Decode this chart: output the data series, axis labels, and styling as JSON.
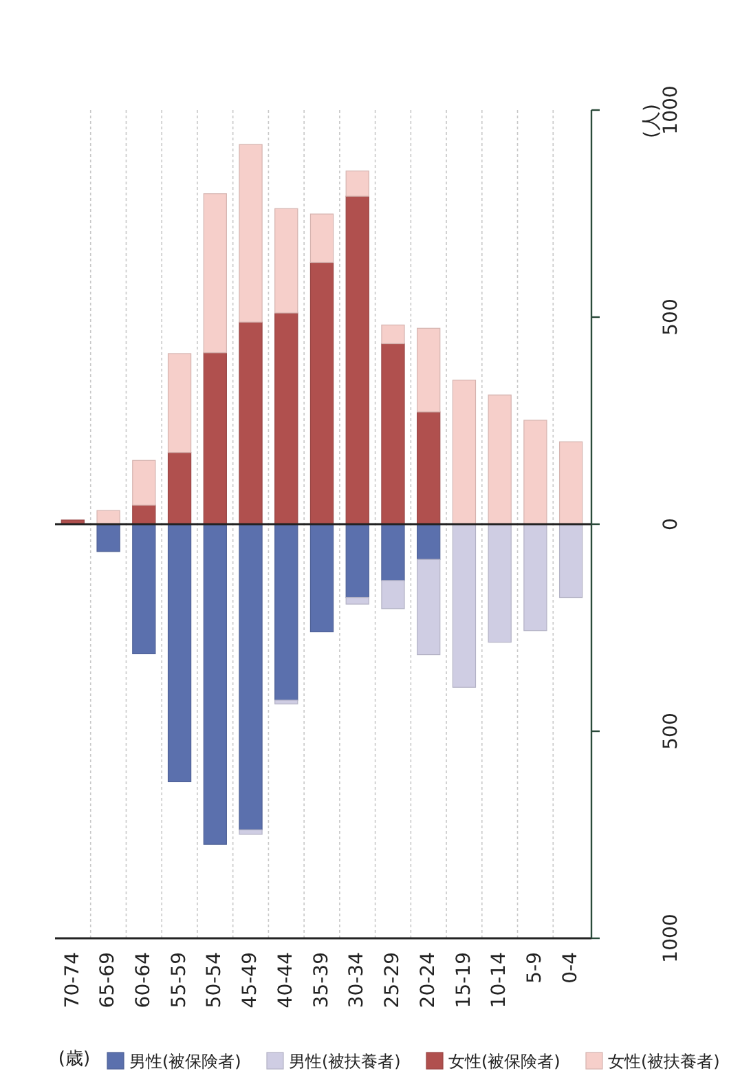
{
  "chart_data": {
    "type": "bar",
    "stacked": true,
    "xlabel": "(歳)",
    "ylabel": "(人)",
    "categories": [
      "70-74",
      "65-69",
      "60-64",
      "55-59",
      "50-54",
      "45-49",
      "40-44",
      "35-39",
      "30-34",
      "25-29",
      "20-24",
      "15-19",
      "10-14",
      "5-9",
      "0-4"
    ],
    "series": [
      {
        "name": "男性(被保険者)",
        "color": "#5b70ad",
        "values": [
          0,
          -66,
          -313,
          -622,
          -773,
          -738,
          -425,
          -260,
          -177,
          -136,
          -85,
          0,
          0,
          0,
          0
        ]
      },
      {
        "name": "男性(被扶養者)",
        "color": "#cfcde3",
        "values": [
          0,
          0,
          0,
          0,
          0,
          -11,
          -9,
          0,
          -16,
          -68,
          -230,
          -394,
          -285,
          -257,
          -177
        ]
      },
      {
        "name": "女性(被保険者)",
        "color": "#b0504e",
        "values": [
          10,
          0,
          46,
          173,
          414,
          488,
          510,
          632,
          792,
          436,
          271,
          0,
          0,
          0,
          0
        ]
      },
      {
        "name": "女性(被扶養者)",
        "color": "#f6cfca",
        "values": [
          0,
          33,
          108,
          239,
          384,
          429,
          252,
          117,
          61,
          45,
          202,
          348,
          312,
          251,
          199
        ]
      }
    ],
    "ylim": [
      -1000,
      1000
    ],
    "yticks": [
      {
        "value": -1000,
        "label": "1000"
      },
      {
        "value": -500,
        "label": "500"
      },
      0,
      500,
      1000
    ],
    "grid": "x",
    "legend": "bottom"
  }
}
